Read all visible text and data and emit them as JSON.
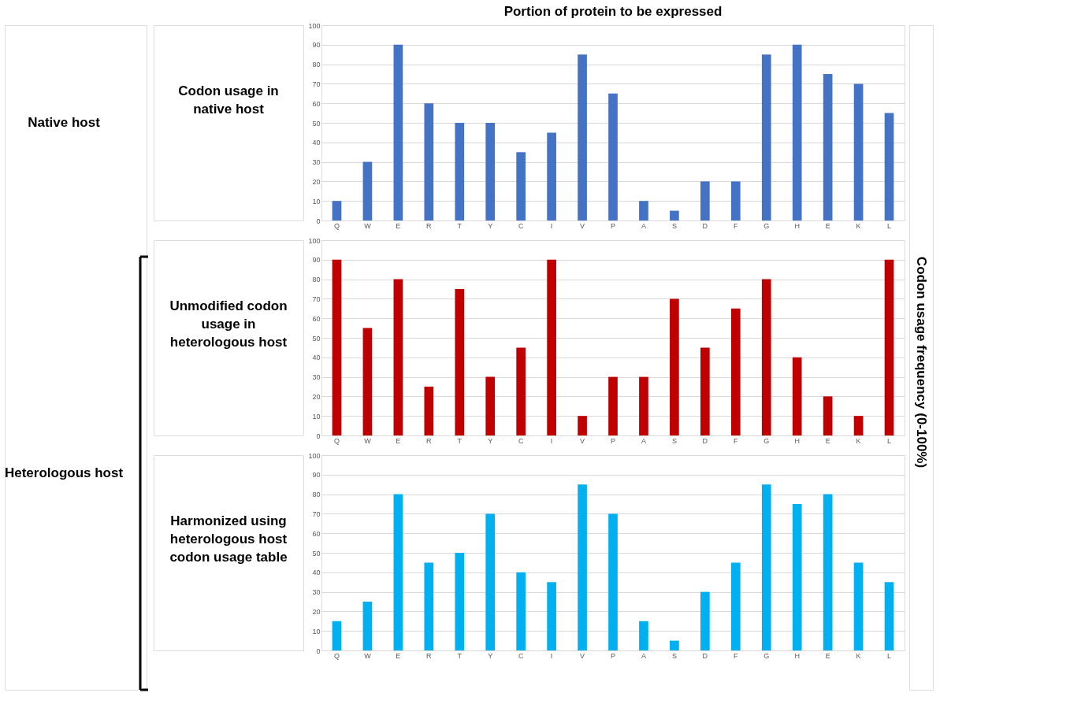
{
  "chart_data": [
    {
      "type": "bar",
      "title": "Portion of protein to be expressed",
      "subtitle": "Codon usage in native host",
      "annotations": [
        "Native host"
      ],
      "categories": [
        "Q",
        "W",
        "E",
        "R",
        "T",
        "Y",
        "C",
        "I",
        "V",
        "P",
        "A",
        "S",
        "D",
        "F",
        "G",
        "H",
        "E",
        "K",
        "L"
      ],
      "values": [
        10,
        30,
        90,
        60,
        50,
        50,
        35,
        45,
        85,
        65,
        10,
        5,
        20,
        20,
        85,
        90,
        75,
        70,
        55
      ],
      "color": "#4472c4",
      "ylim": [
        0,
        100
      ],
      "yticks": [
        0,
        10,
        20,
        30,
        40,
        50,
        60,
        70,
        80,
        90,
        100
      ],
      "grid": "y"
    },
    {
      "type": "bar",
      "subtitle": "Unmodified codon usage in heterologous host",
      "annotations": [
        "Heterologous host"
      ],
      "ylabel": "Codon usage frequency (0-100%)",
      "categories": [
        "Q",
        "W",
        "E",
        "R",
        "T",
        "Y",
        "C",
        "I",
        "V",
        "P",
        "A",
        "S",
        "D",
        "F",
        "G",
        "H",
        "E",
        "K",
        "L"
      ],
      "values": [
        90,
        55,
        80,
        25,
        75,
        30,
        45,
        90,
        10,
        30,
        30,
        70,
        45,
        65,
        80,
        40,
        20,
        10,
        90
      ],
      "color": "#c00000",
      "ylim": [
        0,
        100
      ],
      "yticks": [
        0,
        10,
        20,
        30,
        40,
        50,
        60,
        70,
        80,
        90,
        100
      ],
      "grid": "y"
    },
    {
      "type": "bar",
      "subtitle": "Harmonized using heterologous host codon usage table",
      "categories": [
        "Q",
        "W",
        "E",
        "R",
        "T",
        "Y",
        "C",
        "I",
        "V",
        "P",
        "A",
        "S",
        "D",
        "F",
        "G",
        "H",
        "E",
        "K",
        "L"
      ],
      "values": [
        15,
        25,
        80,
        45,
        50,
        70,
        40,
        35,
        85,
        70,
        15,
        5,
        30,
        45,
        85,
        75,
        80,
        45,
        35
      ],
      "color": "#00b0f0",
      "ylim": [
        0,
        100
      ],
      "yticks": [
        0,
        10,
        20,
        30,
        40,
        50,
        60,
        70,
        80,
        90,
        100
      ],
      "grid": "y"
    }
  ]
}
